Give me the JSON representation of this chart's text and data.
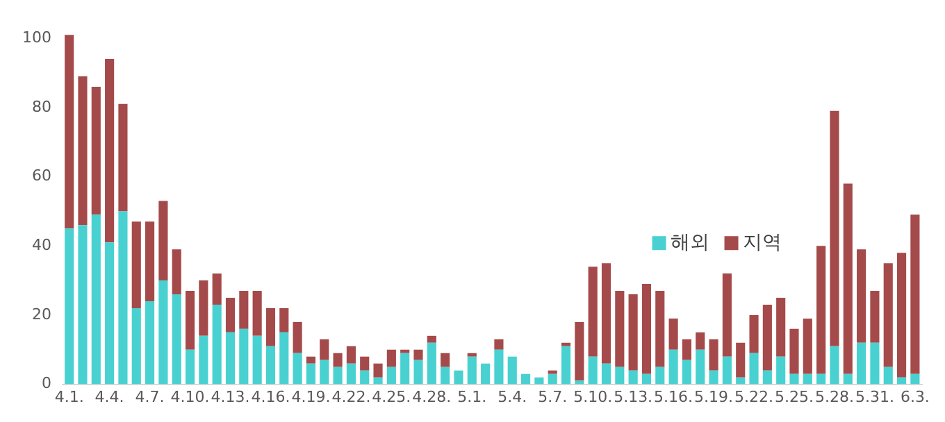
{
  "chart_data": {
    "type": "bar",
    "stacked": true,
    "legend": "right",
    "grid": false,
    "categories": [
      "4.1.",
      null,
      null,
      "4.4.",
      null,
      null,
      "4.7.",
      null,
      null,
      "4.10.",
      null,
      null,
      "4.13.",
      null,
      null,
      "4.16.",
      null,
      null,
      "4.19.",
      null,
      null,
      "4.22.",
      null,
      null,
      "4.25.",
      null,
      null,
      "4.28.",
      null,
      null,
      "5.1.",
      null,
      null,
      "5.4.",
      null,
      null,
      "5.7.",
      null,
      null,
      "5.10.",
      null,
      null,
      "5.13.",
      null,
      null,
      "5.16.",
      null,
      null,
      "5.19.",
      null,
      null,
      "5.22.",
      null,
      null,
      "5.25.",
      null,
      null,
      "5.28.",
      null,
      null,
      "5.31.",
      null,
      null,
      "6.3."
    ],
    "series": [
      {
        "name": "해외",
        "color": "#48d1d0",
        "values": [
          45,
          46,
          49,
          41,
          50,
          22,
          24,
          30,
          26,
          10,
          14,
          23,
          15,
          16,
          14,
          11,
          15,
          9,
          6,
          7,
          5,
          6,
          4,
          2,
          5,
          9,
          7,
          12,
          5,
          4,
          8,
          6,
          10,
          8,
          3,
          2,
          3,
          11,
          1,
          8,
          6,
          5,
          4,
          3,
          5,
          10,
          7,
          10,
          4,
          8,
          2,
          9,
          4,
          8,
          3,
          3,
          3,
          11,
          3,
          12,
          12,
          5,
          2,
          3
        ]
      },
      {
        "name": "지역",
        "color": "#a54a4a",
        "values": [
          56,
          43,
          37,
          53,
          31,
          25,
          23,
          23,
          13,
          17,
          16,
          9,
          10,
          11,
          13,
          11,
          7,
          9,
          2,
          6,
          4,
          5,
          4,
          4,
          5,
          1,
          3,
          2,
          4,
          0,
          1,
          0,
          3,
          0,
          0,
          0,
          1,
          1,
          17,
          26,
          29,
          22,
          22,
          26,
          22,
          9,
          6,
          5,
          9,
          24,
          10,
          11,
          19,
          17,
          13,
          16,
          37,
          68,
          55,
          27,
          15,
          30,
          36,
          46
        ]
      }
    ],
    "ylim": [
      0,
      102
    ],
    "yticks": [
      0,
      20,
      40,
      60,
      80,
      100
    ]
  }
}
